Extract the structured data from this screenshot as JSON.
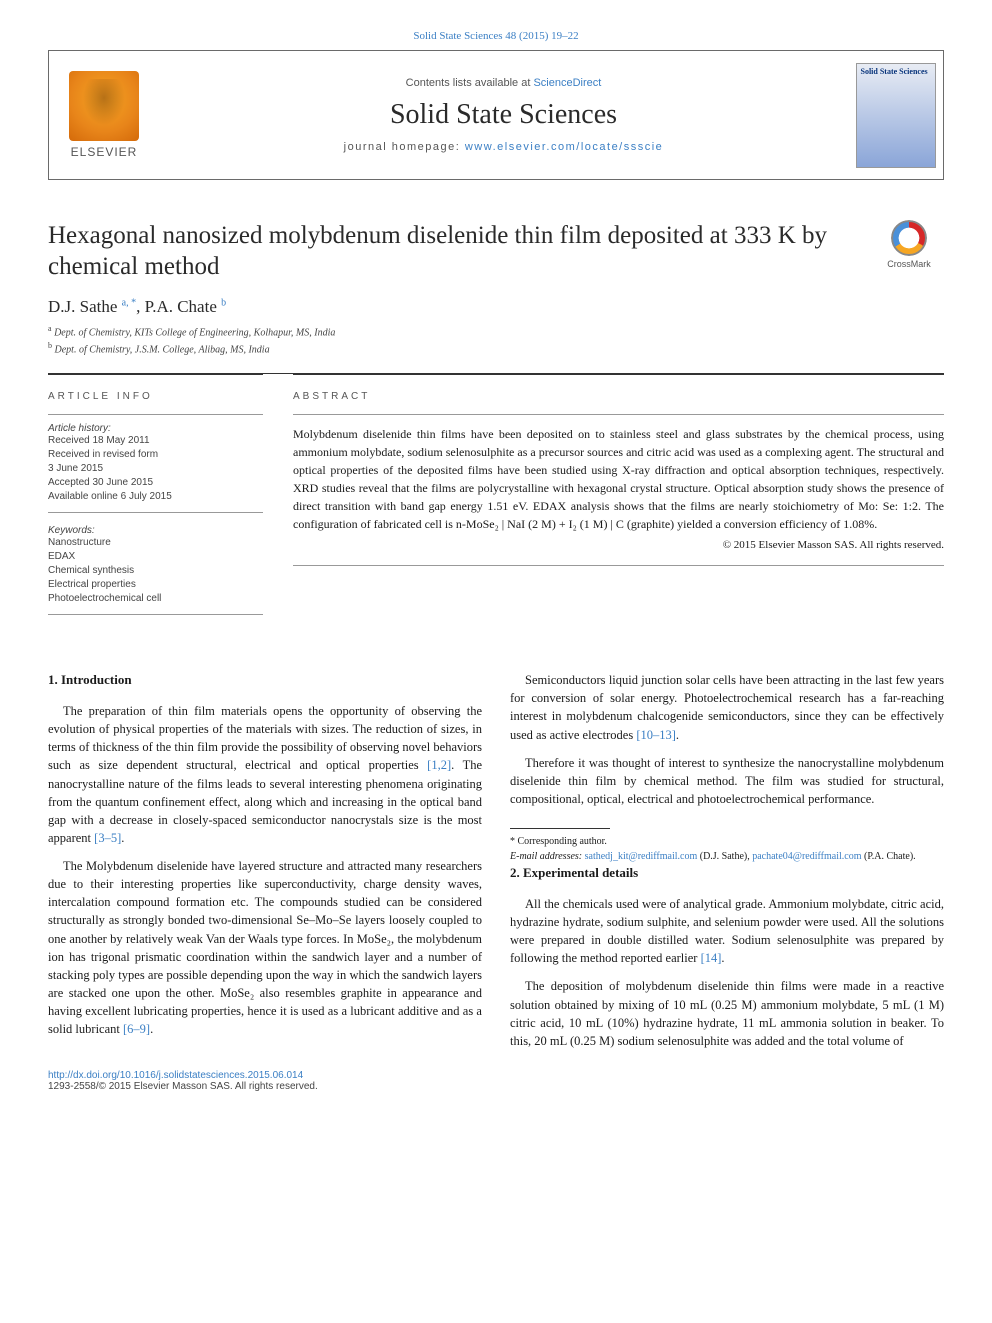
{
  "citation": "Solid State Sciences 48 (2015) 19–22",
  "header": {
    "contents_prefix": "Contents lists available at ",
    "contents_link": "ScienceDirect",
    "journal_title": "Solid State Sciences",
    "homepage_prefix": "journal homepage: ",
    "homepage_link": "www.elsevier.com/locate/ssscie",
    "elsevier_label": "ELSEVIER",
    "cover_title": "Solid State Sciences"
  },
  "crossmark_label": "CrossMark",
  "article_title": "Hexagonal nanosized molybdenum diselenide thin film deposited at 333 K by chemical method",
  "authors_html": "D.J. Sathe <span class='sup'>a, *</span>, P.A. Chate <span class='sup'>b</span>",
  "affiliations": [
    "a Dept. of Chemistry, KITs College of Engineering, Kolhapur, MS, India",
    "b Dept. of Chemistry, J.S.M. College, Alibag, MS, India"
  ],
  "info_label": "ARTICLE INFO",
  "abstract_label": "ABSTRACT",
  "history_head": "Article history:",
  "history": [
    "Received 18 May 2011",
    "Received in revised form",
    "3 June 2015",
    "Accepted 30 June 2015",
    "Available online 6 July 2015"
  ],
  "keywords_head": "Keywords:",
  "keywords": [
    "Nanostructure",
    "EDAX",
    "Chemical synthesis",
    "Electrical properties",
    "Photoelectrochemical cell"
  ],
  "abstract": "Molybdenum diselenide thin films have been deposited on to stainless steel and glass substrates by the chemical process, using ammonium molybdate, sodium selenosulphite as a precursor sources and citric acid was used as a complexing agent. The structural and optical properties of the deposited films have been studied using X-ray diffraction and optical absorption techniques, respectively. XRD studies reveal that the films are polycrystalline with hexagonal crystal structure. Optical absorption study shows the presence of direct transition with band gap energy 1.51 eV. EDAX analysis shows that the films are nearly stoichiometry of Mo: Se: 1:2. The configuration of fabricated cell is n-MoSe₂ | NaI (2 M) + I₂ (1 M) | C (graphite) yielded a conversion efficiency of 1.08%.",
  "copyright": "© 2015 Elsevier Masson SAS. All rights reserved.",
  "sections": {
    "intro_head": "1. Introduction",
    "intro": [
      "The preparation of thin film materials opens the opportunity of observing the evolution of physical properties of the materials with sizes. The reduction of sizes, in terms of thickness of the thin film provide the possibility of observing novel behaviors such as size dependent structural, electrical and optical properties <span class='cite'>[1,2]</span>. The nanocrystalline nature of the films leads to several interesting phenomena originating from the quantum confinement effect, along which and increasing in the optical band gap with a decrease in closely-spaced semiconductor nanocrystals size is the most apparent <span class='cite'>[3–5]</span>.",
      "The Molybdenum diselenide have layered structure and attracted many researchers due to their interesting properties like superconductivity, charge density waves, intercalation compound formation etc. The compounds studied can be considered structurally as strongly bonded two-dimensional Se–Mo–Se layers loosely coupled to one another by relatively weak Van der Waals type forces. In MoSe₂, the molybdenum ion has trigonal prismatic coordination within the sandwich layer and a number of stacking poly types are possible depending upon the way in which the sandwich layers are stacked one upon the other. MoSe₂ also resembles graphite in appearance and having excellent lubricating properties, hence it is used as a lubricant additive and as a solid lubricant <span class='cite'>[6–9]</span>.",
      "Semiconductors liquid junction solar cells have been attracting in the last few years for conversion of solar energy. Photoelectrochemical research has a far-reaching interest in molybdenum chalcogenide semiconductors, since they can be effectively used as active electrodes <span class='cite'>[10–13]</span>.",
      "Therefore it was thought of interest to synthesize the nanocrystalline molybdenum diselenide thin film by chemical method. The film was studied for structural, compositional, optical, electrical and photoelectrochemical performance."
    ],
    "exp_head": "2. Experimental details",
    "exp": [
      "All the chemicals used were of analytical grade. Ammonium molybdate, citric acid, hydrazine hydrate, sodium sulphite, and selenium powder were used. All the solutions were prepared in double distilled water. Sodium selenosulphite was prepared by following the method reported earlier <span class='cite'>[14]</span>.",
      "The deposition of molybdenum diselenide thin films were made in a reactive solution obtained by mixing of 10 mL (0.25 M) ammonium molybdate, 5 mL (1 M) citric acid, 10 mL (10%) hydrazine hydrate, 11 mL ammonia solution in beaker. To this, 20 mL (0.25 M) sodium selenosulphite was added and the total volume of"
    ]
  },
  "footnotes": {
    "corr": "* Corresponding author.",
    "email_label": "E-mail addresses:",
    "email1": "sathedj_kit@rediffmail.com",
    "email1_name": " (D.J. Sathe), ",
    "email2": "pachate04@rediffmail.com",
    "email2_name": " (P.A. Chate)."
  },
  "doi": {
    "url": "http://dx.doi.org/10.1016/j.solidstatesciences.2015.06.014",
    "issn_copy": "1293-2558/© 2015 Elsevier Masson SAS. All rights reserved."
  }
}
